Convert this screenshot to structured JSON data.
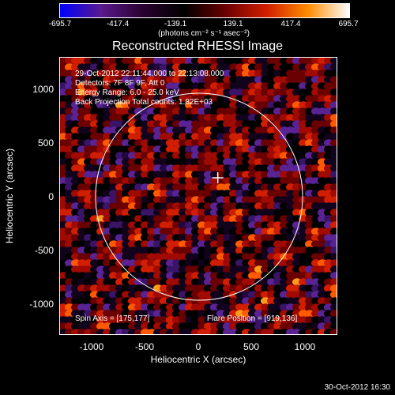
{
  "colorbar": {
    "ticks": [
      "-695.7",
      "-417.4",
      "-139.1",
      "139.1",
      "417.4",
      "695.7"
    ],
    "unit": "(photons cm⁻² s⁻¹ asec⁻²)",
    "min": -695.7,
    "max": 695.7,
    "colors": [
      "#0000ff",
      "#5a1a8c",
      "#2a0030",
      "#000000",
      "#6a0000",
      "#d21e00",
      "#ff8c00",
      "#ffffff"
    ]
  },
  "title": "Reconstructed RHESSI Image",
  "info": {
    "time_range": "29-Oct-2012 22:11:44.000 to 22:13:08.000",
    "detectors": "Detectors: 7F 8F 9F, Att 0",
    "energy": "Energy Range: 6.0 - 25.0 keV",
    "method": "Back Projection    Total counts: 1.82E+03",
    "spin_axis": "Spin Axis = [175,177]",
    "flare_position": "Flare Position = [919,136]"
  },
  "axes": {
    "xlabel": "Heliocentric X (arcsec)",
    "ylabel": "Heliocentric Y (arcsec)",
    "xticks": [
      "-1000",
      "-500",
      "0",
      "500",
      "1000"
    ],
    "yticks": [
      "1000",
      "500",
      "0",
      "-500",
      "-1000"
    ],
    "xlim": [
      -1300,
      1300
    ],
    "ylim": [
      -1300,
      1300
    ]
  },
  "map": {
    "solar_radius_arcsec": 968,
    "marker_xy": [
      175,
      177
    ]
  },
  "footer": {
    "timestamp": "30-Oct-2012 16:30"
  }
}
